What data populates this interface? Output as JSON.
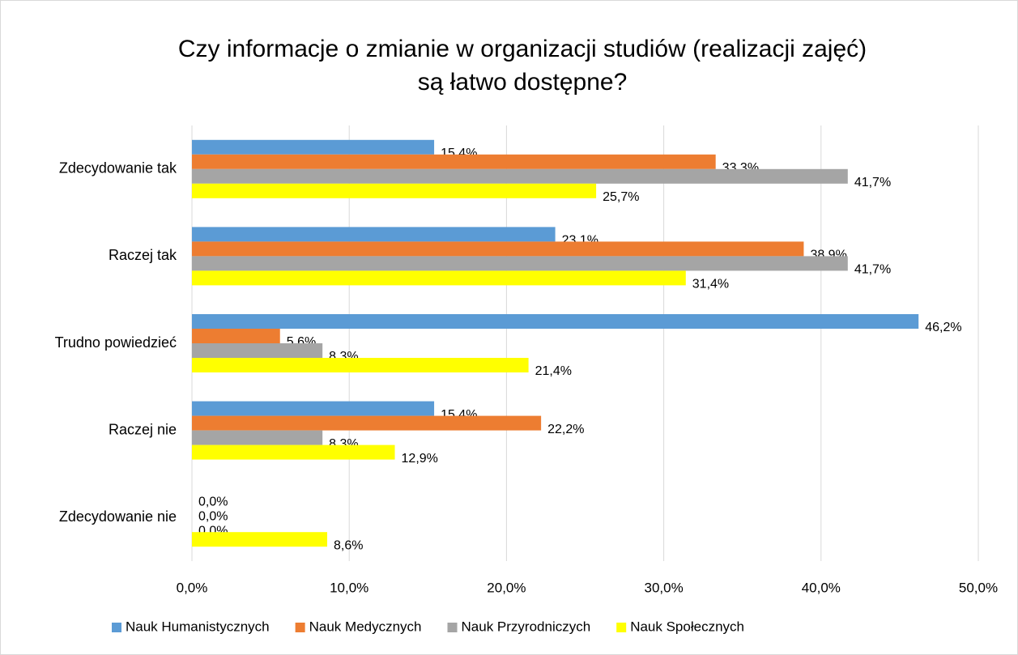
{
  "chart_data": {
    "type": "hbar",
    "title": [
      "Czy informacje o zmianie w organizacji studiów (realizacji zajęć)",
      "są łatwo dostępne?"
    ],
    "categories": [
      "Zdecydowanie tak",
      "Raczej tak",
      "Trudno powiedzieć",
      "Raczej nie",
      "Zdecydowanie nie"
    ],
    "series": [
      {
        "name": "Nauk Humanistycznych",
        "color": "#5b9bd5",
        "values": [
          15.4,
          23.1,
          46.2,
          15.4,
          0
        ],
        "value_labels": [
          "15,4%",
          "23,1%",
          "46,2%",
          "15,4%",
          "0,0%"
        ]
      },
      {
        "name": "Nauk Medycznych",
        "color": "#ed7d31",
        "values": [
          33.3,
          38.9,
          5.6,
          22.2,
          0
        ],
        "value_labels": [
          "33,3%",
          "38,9%",
          "5,6%",
          "22,2%",
          "0,0%"
        ]
      },
      {
        "name": "Nauk Przyrodniczych",
        "color": "#a5a5a5",
        "values": [
          41.7,
          41.7,
          8.3,
          8.3,
          0
        ],
        "value_labels": [
          "41,7%",
          "41,7%",
          "8,3%",
          "8,3%",
          "0,0%"
        ]
      },
      {
        "name": "Nauk Społecznych",
        "color": "#ffff00",
        "values": [
          25.7,
          31.4,
          21.4,
          12.9,
          8.6
        ],
        "value_labels": [
          "25,7%",
          "31,4%",
          "21,4%",
          "12,9%",
          "8,6%"
        ]
      }
    ],
    "xlim": [
      0,
      50
    ],
    "xticks": [
      {
        "value": 0,
        "label": "0,0%"
      },
      {
        "value": 10,
        "label": "10,0%"
      },
      {
        "value": 20,
        "label": "20,0%"
      },
      {
        "value": 30,
        "label": "30,0%"
      },
      {
        "value": 40,
        "label": "40,0%"
      },
      {
        "value": 50,
        "label": "50,0%"
      }
    ],
    "grid": true,
    "legend": "bottom"
  }
}
